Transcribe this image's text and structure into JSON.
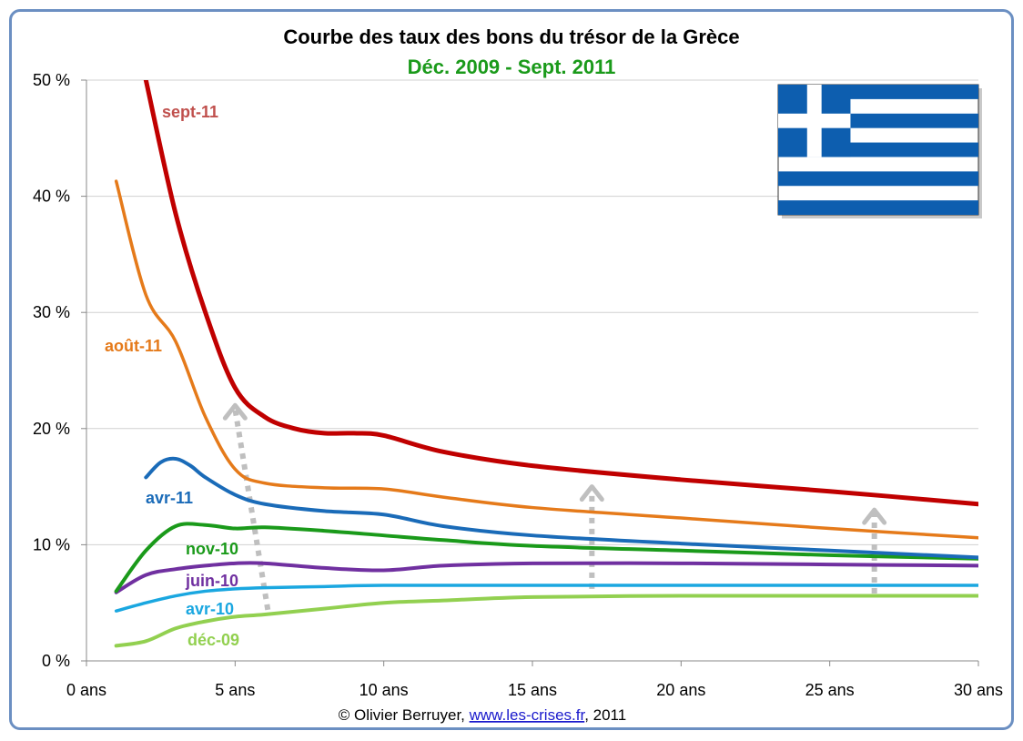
{
  "chart_data": {
    "type": "line",
    "title": "Courbe des taux des bons du trésor de la Grèce",
    "subtitle": "Déc. 2009 - Sept. 2011",
    "xlabel": "",
    "ylabel": "",
    "xlim": [
      0,
      30
    ],
    "ylim": [
      0,
      50
    ],
    "x_ticks": [
      0,
      5,
      10,
      15,
      20,
      25,
      30
    ],
    "x_tick_labels": [
      "0 ans",
      "5 ans",
      "10 ans",
      "15 ans",
      "20 ans",
      "25 ans",
      "30 ans"
    ],
    "y_ticks": [
      0,
      10,
      20,
      30,
      40,
      50
    ],
    "y_tick_labels": [
      "0 %",
      "10 %",
      "20 %",
      "30 %",
      "40 %",
      "50 %"
    ],
    "grid": "horizontal",
    "series": [
      {
        "name": "déc-09",
        "color": "#92d050",
        "x": [
          1,
          2,
          3,
          4,
          5,
          6,
          8,
          10,
          12,
          15,
          20,
          25,
          30
        ],
        "y": [
          1.3,
          1.7,
          2.8,
          3.4,
          3.8,
          4.0,
          4.5,
          5.0,
          5.2,
          5.5,
          5.6,
          5.6,
          5.6
        ]
      },
      {
        "name": "avr-10",
        "color": "#1aa7e0",
        "x": [
          1,
          2,
          3,
          4,
          5,
          6,
          8,
          10,
          15,
          20,
          25,
          30
        ],
        "y": [
          4.3,
          5.0,
          5.6,
          6.0,
          6.2,
          6.3,
          6.4,
          6.5,
          6.5,
          6.5,
          6.5,
          6.5
        ]
      },
      {
        "name": "juin-10",
        "color": "#7030a0",
        "x": [
          1,
          2,
          3,
          4,
          5,
          6,
          8,
          10,
          12,
          15,
          20,
          25,
          30
        ],
        "y": [
          5.9,
          7.4,
          7.9,
          8.2,
          8.4,
          8.4,
          8.0,
          7.8,
          8.2,
          8.4,
          8.4,
          8.3,
          8.2
        ]
      },
      {
        "name": "nov-10",
        "color": "#1a9a1a",
        "x": [
          1,
          2,
          3,
          4,
          5,
          6,
          8,
          10,
          12,
          15,
          20,
          25,
          30
        ],
        "y": [
          6.0,
          9.5,
          11.6,
          11.7,
          11.4,
          11.5,
          11.2,
          10.8,
          10.4,
          9.9,
          9.5,
          9.1,
          8.8
        ]
      },
      {
        "name": "avr-11",
        "color": "#1a6bb8",
        "x": [
          2,
          2.5,
          3,
          3.5,
          4,
          5,
          6,
          8,
          10,
          12,
          15,
          20,
          25,
          30
        ],
        "y": [
          15.8,
          17.1,
          17.4,
          16.8,
          15.8,
          14.3,
          13.5,
          12.9,
          12.6,
          11.6,
          10.8,
          10.1,
          9.5,
          8.9
        ]
      },
      {
        "name": "août-11",
        "color": "#e57a1a",
        "x": [
          1,
          2,
          3,
          4,
          5,
          6,
          8,
          10,
          12,
          15,
          20,
          25,
          30
        ],
        "y": [
          41.3,
          31.5,
          27.5,
          21.0,
          16.5,
          15.3,
          14.9,
          14.8,
          14.1,
          13.2,
          12.3,
          11.4,
          10.6
        ]
      },
      {
        "name": "sept-11",
        "color": "#c00000",
        "x": [
          2,
          3,
          4,
          5,
          6,
          7,
          8,
          9,
          10,
          12,
          15,
          20,
          25,
          30
        ],
        "y": [
          50.0,
          38.5,
          30.0,
          23.5,
          21.0,
          20.0,
          19.6,
          19.6,
          19.4,
          18.0,
          16.8,
          15.6,
          14.6,
          13.5
        ]
      }
    ],
    "arrows": [
      {
        "x": 6.1,
        "from": 4.4,
        "to": 22.0
      },
      {
        "x": 17.0,
        "from": 6.2,
        "to": 15.0
      },
      {
        "x": 26.5,
        "from": 5.8,
        "to": 13.0
      }
    ]
  },
  "credit": {
    "prefix": "© Olivier Berruyer, ",
    "link": "www.les-crises.fr",
    "suffix": ", 2011"
  },
  "flag": {
    "icon": "greek-flag-icon",
    "blue": "#0d5eaf",
    "white": "#ffffff"
  }
}
